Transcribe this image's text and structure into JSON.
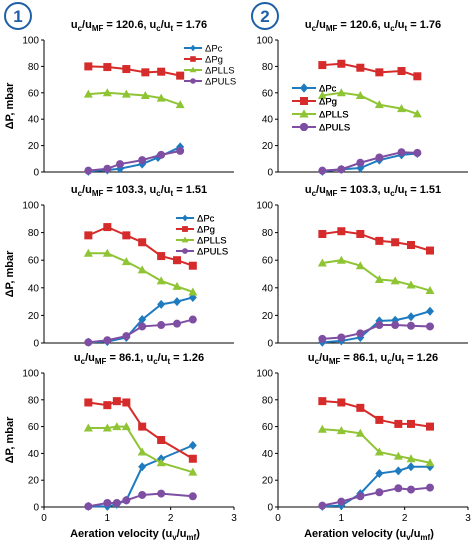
{
  "badges": [
    "1",
    "2"
  ],
  "ylabel": "ΔP, mbar",
  "xlabel": "Aeration velocity (u_v/u_mf)",
  "colors": {
    "ΔPc": "#1f7bc0",
    "ΔPg": "#d62b2b",
    "ΔPLLS": "#8fc434",
    "ΔPULS": "#7e4ea3"
  },
  "chart_data": [
    {
      "type": "line",
      "title": "u_c/u_MF = 120.6, u_c/u_t = 1.76",
      "xlabel": "",
      "ylabel": "ΔP, mbar",
      "ylim": [
        0,
        100
      ],
      "xlim": [
        0,
        3
      ],
      "yticks": [
        0,
        20,
        40,
        60,
        80,
        100
      ],
      "xticks": [],
      "legend": "top-right",
      "series": [
        {
          "name": "ΔPc",
          "marker": "diamond",
          "x": [
            0.7,
            1.0,
            1.2,
            1.55,
            1.8,
            2.15
          ],
          "y": [
            0.5,
            1.5,
            2.5,
            6,
            11,
            19
          ]
        },
        {
          "name": "ΔPg",
          "marker": "square",
          "x": [
            0.7,
            1.0,
            1.3,
            1.6,
            1.85,
            2.15
          ],
          "y": [
            80,
            79.5,
            78,
            75.5,
            76,
            73
          ]
        },
        {
          "name": "ΔPLLS",
          "marker": "triangle",
          "x": [
            0.7,
            1.0,
            1.3,
            1.6,
            1.85,
            2.15
          ],
          "y": [
            59,
            60,
            59,
            58,
            56,
            51
          ]
        },
        {
          "name": "ΔPULS",
          "marker": "circle",
          "x": [
            0.7,
            1.0,
            1.2,
            1.55,
            1.85,
            2.15
          ],
          "y": [
            1,
            2.5,
            6,
            9,
            13,
            16
          ]
        }
      ]
    },
    {
      "type": "line",
      "title": "u_c/u_MF = 120.6, u_c/u_t = 1.76",
      "xlabel": "",
      "ylabel": "",
      "ylim": [
        0,
        100
      ],
      "xlim": [
        0,
        3
      ],
      "yticks": [
        0,
        20,
        40,
        60,
        80,
        100
      ],
      "xticks": [],
      "legend": "center-left",
      "series": [
        {
          "name": "ΔPc",
          "marker": "diamond",
          "x": [
            0.7,
            1.0,
            1.3,
            1.6,
            1.95,
            2.2
          ],
          "y": [
            0.5,
            2,
            3,
            9,
            13,
            14
          ]
        },
        {
          "name": "ΔPg",
          "marker": "square",
          "x": [
            0.7,
            1.0,
            1.3,
            1.6,
            1.95,
            2.2
          ],
          "y": [
            81,
            82,
            79,
            75.5,
            76.5,
            72.5
          ]
        },
        {
          "name": "ΔPLLS",
          "marker": "triangle",
          "x": [
            0.7,
            1.0,
            1.3,
            1.6,
            1.95,
            2.2
          ],
          "y": [
            58,
            60,
            58,
            51,
            48,
            44
          ]
        },
        {
          "name": "ΔPULS",
          "marker": "circle",
          "x": [
            0.7,
            1.0,
            1.3,
            1.6,
            1.95,
            2.2
          ],
          "y": [
            1,
            2,
            7,
            11,
            15,
            14.5
          ]
        }
      ]
    },
    {
      "type": "line",
      "title": "u_c/u_MF = 103.3, u_c/u_t = 1.51",
      "xlabel": "",
      "ylabel": "ΔP, mbar",
      "ylim": [
        0,
        100
      ],
      "xlim": [
        0,
        3
      ],
      "yticks": [
        0,
        20,
        40,
        60,
        80,
        100
      ],
      "xticks": [],
      "legend": "right",
      "series": [
        {
          "name": "ΔPc",
          "marker": "diamond",
          "x": [
            0.7,
            1.0,
            1.3,
            1.55,
            1.85,
            2.1,
            2.35
          ],
          "y": [
            0.5,
            1,
            4,
            17,
            28,
            30,
            33
          ]
        },
        {
          "name": "ΔPg",
          "marker": "square",
          "x": [
            0.7,
            1.0,
            1.3,
            1.55,
            1.85,
            2.1,
            2.35
          ],
          "y": [
            78,
            84,
            78,
            73,
            63,
            60,
            56
          ]
        },
        {
          "name": "ΔPLLS",
          "marker": "triangle",
          "x": [
            0.7,
            1.0,
            1.3,
            1.55,
            1.85,
            2.1,
            2.35
          ],
          "y": [
            65,
            65,
            59,
            53,
            45,
            41,
            37
          ]
        },
        {
          "name": "ΔPULS",
          "marker": "circle",
          "x": [
            0.7,
            1.0,
            1.3,
            1.55,
            1.85,
            2.1,
            2.35
          ],
          "y": [
            0.5,
            2,
            5,
            12,
            13,
            14,
            17
          ]
        }
      ]
    },
    {
      "type": "line",
      "title": "u_c/u_MF = 103.3, u_c/u_t = 1.51",
      "xlabel": "",
      "ylabel": "",
      "ylim": [
        0,
        100
      ],
      "xlim": [
        0,
        3
      ],
      "yticks": [
        0,
        20,
        40,
        60,
        80,
        100
      ],
      "xticks": [],
      "legend": "center-left",
      "series": [
        {
          "name": "ΔPc",
          "marker": "diamond",
          "x": [
            0.7,
            1.0,
            1.3,
            1.6,
            1.85,
            2.1,
            2.4
          ],
          "y": [
            0.5,
            1.5,
            4,
            16,
            16.5,
            19,
            23
          ]
        },
        {
          "name": "ΔPg",
          "marker": "square",
          "x": [
            0.7,
            1.0,
            1.3,
            1.6,
            1.85,
            2.1,
            2.4
          ],
          "y": [
            79,
            81,
            79,
            74,
            73,
            71,
            67
          ]
        },
        {
          "name": "ΔPLLS",
          "marker": "triangle",
          "x": [
            0.7,
            1.0,
            1.3,
            1.6,
            1.85,
            2.1,
            2.4
          ],
          "y": [
            58,
            60,
            56,
            46,
            45,
            42,
            38
          ]
        },
        {
          "name": "ΔPULS",
          "marker": "circle",
          "x": [
            0.7,
            1.0,
            1.3,
            1.6,
            1.85,
            2.1,
            2.4
          ],
          "y": [
            3,
            4,
            7,
            13,
            13,
            12.5,
            12
          ]
        }
      ]
    },
    {
      "type": "line",
      "title": "u_c/u_MF = 86.1, u_c/u_t = 1.26",
      "xlabel": "Aeration velocity (u_v/u_mf)",
      "ylabel": "ΔP, mbar",
      "ylim": [
        0,
        100
      ],
      "xlim": [
        0,
        3
      ],
      "yticks": [
        0,
        20,
        40,
        60,
        80,
        100
      ],
      "xticks": [
        0,
        1,
        2,
        3
      ],
      "legend": "right",
      "series": [
        {
          "name": "ΔPc",
          "marker": "diamond",
          "x": [
            0.7,
            1.0,
            1.15,
            1.3,
            1.55,
            1.85,
            2.35
          ],
          "y": [
            0.5,
            0.5,
            2,
            5,
            30,
            36,
            46
          ]
        },
        {
          "name": "ΔPg",
          "marker": "square",
          "x": [
            0.7,
            1.0,
            1.15,
            1.3,
            1.55,
            1.85,
            2.35
          ],
          "y": [
            78,
            76,
            79,
            78,
            60,
            50,
            36
          ]
        },
        {
          "name": "ΔPLLS",
          "marker": "triangle",
          "x": [
            0.7,
            1.0,
            1.15,
            1.3,
            1.55,
            1.85,
            2.35
          ],
          "y": [
            59,
            59,
            60,
            60,
            41,
            33,
            26
          ]
        },
        {
          "name": "ΔPULS",
          "marker": "circle",
          "x": [
            0.7,
            1.0,
            1.15,
            1.3,
            1.55,
            1.85,
            2.35
          ],
          "y": [
            0.5,
            3,
            3,
            5,
            9,
            10,
            8
          ]
        }
      ]
    },
    {
      "type": "line",
      "title": "u_c/u_MF = 86.1, u_c/u_t = 1.26",
      "xlabel": "Aeration velocity (u_v/u_mf)",
      "ylabel": "",
      "ylim": [
        0,
        100
      ],
      "xlim": [
        0,
        3
      ],
      "yticks": [
        0,
        20,
        40,
        60,
        80,
        100
      ],
      "xticks": [
        0,
        1,
        2,
        3
      ],
      "legend": "center-left",
      "series": [
        {
          "name": "ΔPc",
          "marker": "diamond",
          "x": [
            0.7,
            1.0,
            1.3,
            1.6,
            1.9,
            2.1,
            2.4
          ],
          "y": [
            0.5,
            1,
            10,
            25,
            27,
            30,
            30
          ]
        },
        {
          "name": "ΔPg",
          "marker": "square",
          "x": [
            0.7,
            1.0,
            1.3,
            1.6,
            1.9,
            2.1,
            2.4
          ],
          "y": [
            79,
            78,
            74,
            65,
            62,
            62,
            60
          ]
        },
        {
          "name": "ΔPLLS",
          "marker": "triangle",
          "x": [
            0.7,
            1.0,
            1.3,
            1.6,
            1.9,
            2.1,
            2.4
          ],
          "y": [
            58,
            57,
            55,
            41,
            38,
            36,
            33
          ]
        },
        {
          "name": "ΔPULS",
          "marker": "circle",
          "x": [
            0.7,
            1.0,
            1.3,
            1.6,
            1.9,
            2.1,
            2.4
          ],
          "y": [
            1,
            4,
            8,
            11,
            14,
            13,
            14.5
          ]
        }
      ]
    }
  ]
}
